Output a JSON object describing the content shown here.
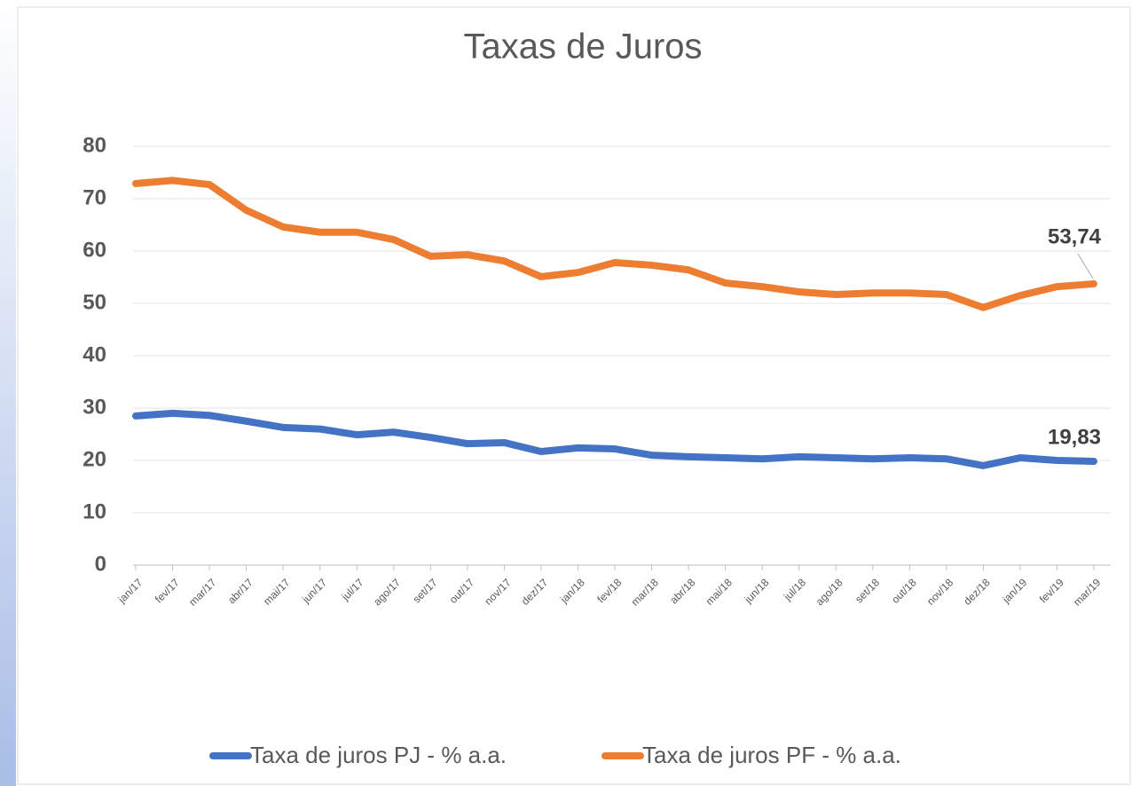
{
  "chart_data": {
    "type": "line",
    "title": "Taxas de Juros",
    "categories": [
      "jan/17",
      "fev/17",
      "mar/17",
      "abr/17",
      "mai/17",
      "jun/17",
      "jul/17",
      "ago/17",
      "set/17",
      "out/17",
      "nov/17",
      "dez/17",
      "jan/18",
      "fev/18",
      "mar/18",
      "abr/18",
      "mai/18",
      "jun/18",
      "jul/18",
      "ago/18",
      "set/18",
      "out/18",
      "nov/18",
      "dez/18",
      "jan/19",
      "fev/19",
      "mar/19"
    ],
    "series": [
      {
        "name": "Taxa de juros PJ - % a.a.",
        "color": "#4472c4",
        "values": [
          28.5,
          29.0,
          28.6,
          27.5,
          26.3,
          26.0,
          24.9,
          25.4,
          24.4,
          23.2,
          23.4,
          21.7,
          22.4,
          22.2,
          21.0,
          20.7,
          20.5,
          20.3,
          20.7,
          20.5,
          20.3,
          20.5,
          20.3,
          19.0,
          20.5,
          20.0,
          19.83
        ],
        "value_labels": [
          null,
          null,
          null,
          null,
          null,
          null,
          null,
          null,
          null,
          null,
          null,
          null,
          null,
          null,
          null,
          null,
          null,
          null,
          null,
          null,
          null,
          null,
          null,
          null,
          null,
          null,
          "19,83"
        ]
      },
      {
        "name": "Taxa de juros PF - % a.a.",
        "color": "#ed7d31",
        "values": [
          72.9,
          73.5,
          72.7,
          67.8,
          64.6,
          63.6,
          63.6,
          62.2,
          59.0,
          59.3,
          58.1,
          55.1,
          55.9,
          57.8,
          57.3,
          56.4,
          53.9,
          53.2,
          52.2,
          51.7,
          52.0,
          52.0,
          51.7,
          49.2,
          51.5,
          53.2,
          53.74
        ],
        "value_labels": [
          null,
          null,
          null,
          null,
          null,
          null,
          null,
          null,
          null,
          null,
          null,
          null,
          null,
          null,
          null,
          null,
          null,
          null,
          null,
          null,
          null,
          null,
          null,
          null,
          null,
          null,
          "53,74"
        ]
      }
    ],
    "ylim": [
      0,
      80
    ],
    "yticks": [
      0,
      10,
      20,
      30,
      40,
      50,
      60,
      70,
      80
    ],
    "grid": true
  }
}
